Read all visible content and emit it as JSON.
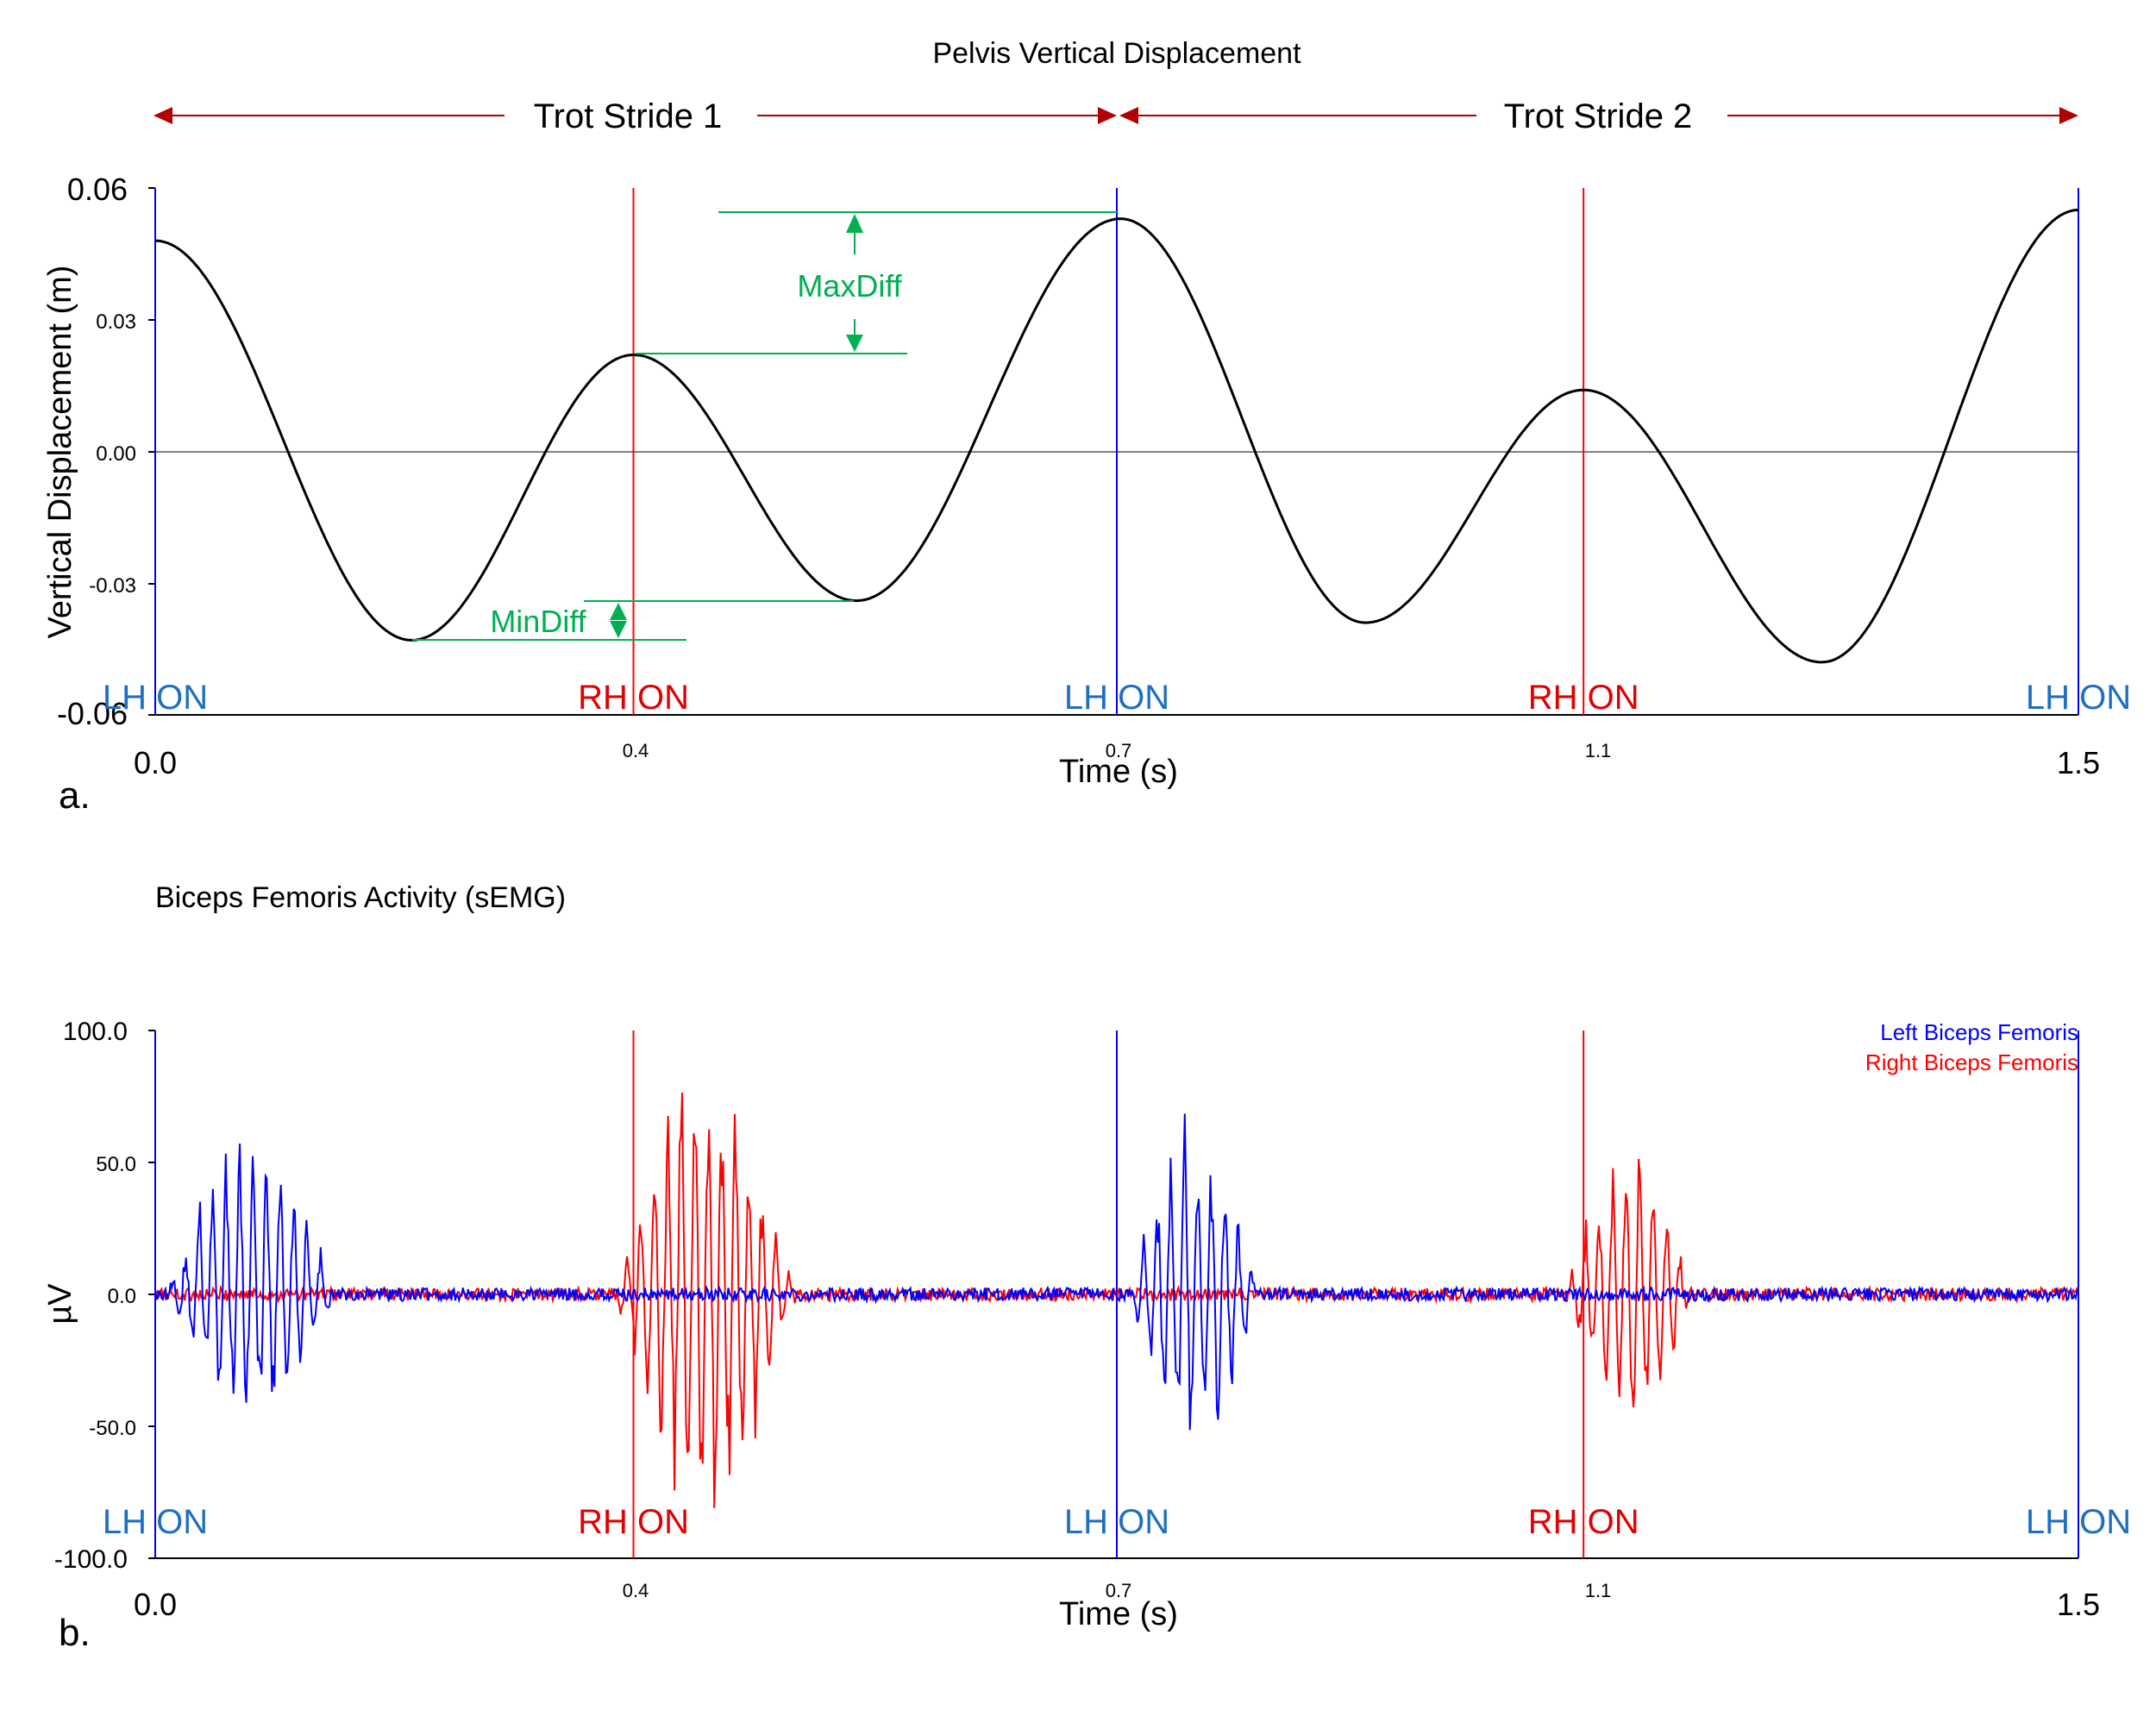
{
  "panel_a": {
    "title": "Pelvis Vertical Displacement",
    "panel_label": "a.",
    "strides": [
      {
        "label": "Trot Stride 1",
        "start": 0.0,
        "end": 0.7
      },
      {
        "label": "Trot Stride 2",
        "start": 0.7,
        "end": 1.5
      }
    ],
    "annotations": {
      "max_label": "MaxDiff",
      "min_label": "MinDiff",
      "color": "#00b050"
    }
  },
  "panel_b": {
    "title": "Biceps Femoris Activity (sEMG)",
    "panel_label": "b."
  },
  "colors": {
    "left_event": "#0000ff",
    "right_event": "#ff0000",
    "event_label_left": "#1f6fc0",
    "event_label_right": "#e00000",
    "curve": "#000000",
    "axis": "#000000"
  },
  "chart_data": [
    {
      "type": "line",
      "title": "Pelvis Vertical Displacement",
      "xlabel": "Time (s)",
      "ylabel": "Vertical Displacement (m)",
      "xlim": [
        0.0,
        1.5
      ],
      "ylim": [
        -0.06,
        0.06
      ],
      "x_ticks": [
        "0.0",
        "0.4",
        "0.7",
        "1.1",
        "1.5"
      ],
      "y_ticks": [
        "0.06",
        "0.03",
        "0.00",
        "-0.03",
        "-0.06"
      ],
      "events": [
        {
          "label": "LH ON",
          "side": "left",
          "t": 0.0
        },
        {
          "label": "RH ON",
          "side": "right",
          "t": 0.373
        },
        {
          "label": "LH ON",
          "side": "left",
          "t": 0.75
        },
        {
          "label": "RH ON",
          "side": "right",
          "t": 1.114
        },
        {
          "label": "LH ON",
          "side": "left",
          "t": 1.5
        }
      ],
      "series": [
        {
          "x": [
            0.0,
            0.2,
            0.373,
            0.547,
            0.753,
            0.944,
            1.114,
            1.3,
            1.5
          ],
          "y": [
            0.048,
            -0.043,
            0.022,
            -0.034,
            0.053,
            -0.039,
            0.014,
            -0.048,
            0.055
          ]
        }
      ],
      "grid": false
    },
    {
      "type": "line",
      "title": "Biceps Femoris Activity (sEMG)",
      "xlabel": "Time (s)",
      "ylabel": "µV",
      "xlim": [
        0.0,
        1.5
      ],
      "ylim": [
        -100.0,
        100.0
      ],
      "x_ticks": [
        "0.0",
        "0.4",
        "0.7",
        "1.1",
        "1.5"
      ],
      "y_ticks": [
        "100.0",
        "50.0",
        "0.0",
        "-50.0",
        "-100.0"
      ],
      "legend": "top-right",
      "events": [
        {
          "label": "LH ON",
          "side": "left",
          "t": 0.0
        },
        {
          "label": "RH ON",
          "side": "right",
          "t": 0.373
        },
        {
          "label": "LH ON",
          "side": "left",
          "t": 0.75
        },
        {
          "label": "RH ON",
          "side": "right",
          "t": 1.114
        },
        {
          "label": "LH ON",
          "side": "left",
          "t": 1.5
        }
      ],
      "series": [
        {
          "name": "Left Biceps Femoris",
          "color": "#0000ff",
          "bursts": [
            {
              "start": 0.01,
              "end": 0.14,
              "pos_peak": 74,
              "neg_peak": -55
            },
            {
              "start": 0.76,
              "end": 0.86,
              "pos_peak": 78,
              "neg_peak": -68
            }
          ]
        },
        {
          "name": "Right Biceps Femoris",
          "color": "#ff0000",
          "bursts": [
            {
              "start": 0.36,
              "end": 0.5,
              "pos_peak": 100,
              "neg_peak": -100
            },
            {
              "start": 1.1,
              "end": 1.2,
              "pos_peak": 68,
              "neg_peak": -57
            }
          ]
        }
      ],
      "grid": false
    }
  ]
}
